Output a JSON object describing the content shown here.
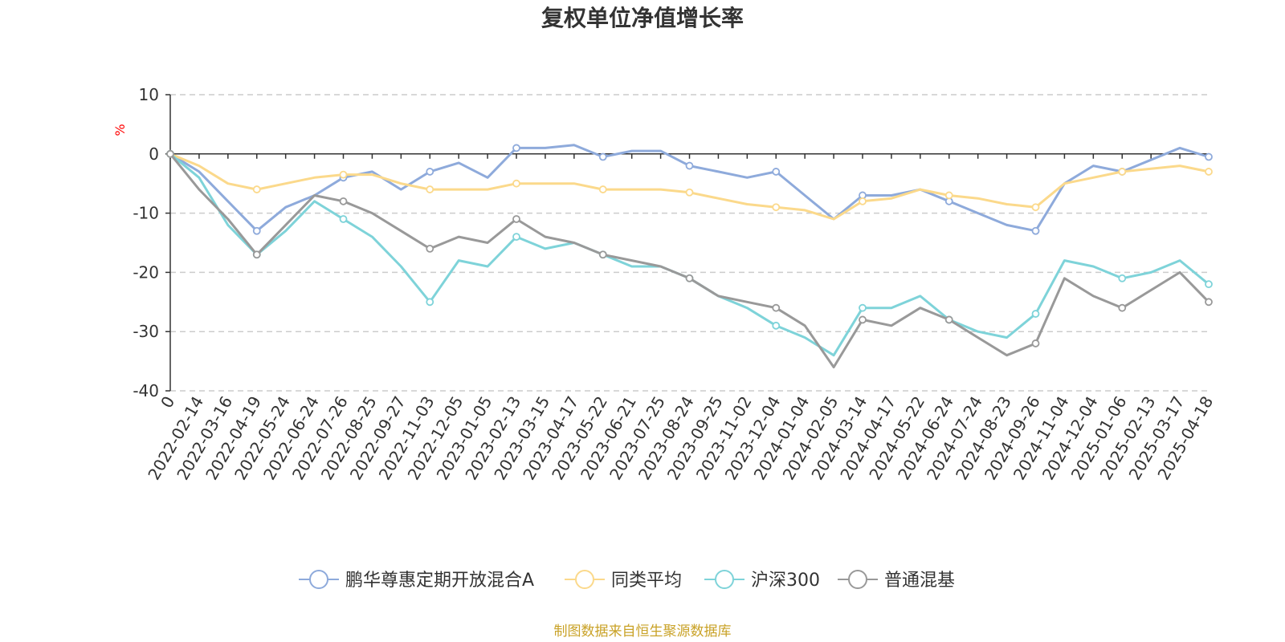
{
  "chart_data": {
    "type": "line",
    "title": "复权单位净值增长率",
    "ylabel": "%",
    "ylim": [
      -40,
      10
    ],
    "yticks": [
      10,
      0,
      -10,
      -20,
      -30,
      -40
    ],
    "grid": true,
    "legend_position": "bottom",
    "x_tick_labels": [
      "0",
      "2022-02-14",
      "2022-03-16",
      "2022-04-19",
      "2022-05-24",
      "2022-06-24",
      "2022-07-26",
      "2022-08-25",
      "2022-09-27",
      "2022-11-03",
      "2022-12-05",
      "2023-01-05",
      "2023-02-13",
      "2023-03-15",
      "2023-04-17",
      "2023-05-22",
      "2023-06-21",
      "2023-07-25",
      "2023-08-24",
      "2023-09-25",
      "2023-11-02",
      "2023-12-04",
      "2024-01-04",
      "2024-02-05",
      "2024-03-14",
      "2024-04-17",
      "2024-05-22",
      "2024-06-24",
      "2024-07-24",
      "2024-08-23",
      "2024-09-26",
      "2024-11-04",
      "2024-12-04",
      "2025-01-06",
      "2025-02-13",
      "2025-03-17",
      "2025-04-18"
    ],
    "series": [
      {
        "name": "鹏华尊惠定期开放混合A",
        "color": "#8eaadb",
        "values": [
          0,
          -3,
          -8,
          -13,
          -9,
          -7,
          -4,
          -3,
          -6,
          -3,
          -1.5,
          -4,
          1,
          1,
          1.5,
          -0.5,
          0.5,
          0.5,
          -2,
          -3,
          -4,
          -3,
          -7,
          -11,
          -7,
          -7,
          -6,
          -8,
          -10,
          -12,
          -13,
          -5,
          -2,
          -3,
          -1,
          1,
          -0.5
        ]
      },
      {
        "name": "同类平均",
        "color": "#fbd98b",
        "values": [
          0,
          -2,
          -5,
          -6,
          -5,
          -4,
          -3.5,
          -3.5,
          -5,
          -6,
          -6,
          -6,
          -5,
          -5,
          -5,
          -6,
          -6,
          -6,
          -6.5,
          -7.5,
          -8.5,
          -9,
          -9.5,
          -11,
          -8,
          -7.5,
          -6,
          -7,
          -7.5,
          -8.5,
          -9,
          -5,
          -4,
          -3,
          -2.5,
          -2,
          -3
        ]
      },
      {
        "name": "沪深300",
        "color": "#7ed3d9",
        "values": [
          0,
          -4,
          -12,
          -17,
          -13,
          -8,
          -11,
          -14,
          -19,
          -25,
          -18,
          -19,
          -14,
          -16,
          -15,
          -17,
          -19,
          -19,
          -21,
          -24,
          -26,
          -29,
          -31,
          -34,
          -26,
          -26,
          -24,
          -28,
          -30,
          -31,
          -27,
          -18,
          -19,
          -21,
          -20,
          -18,
          -22
        ]
      },
      {
        "name": "普通混基",
        "color": "#999999",
        "values": [
          0,
          -6,
          -11,
          -17,
          -12,
          -7,
          -8,
          -10,
          -13,
          -16,
          -14,
          -15,
          -11,
          -14,
          -15,
          -17,
          -18,
          -19,
          -21,
          -24,
          -25,
          -26,
          -29,
          -36,
          -28,
          -29,
          -26,
          -28,
          -31,
          -34,
          -32,
          -21,
          -24,
          -26,
          -23,
          -20,
          -25
        ]
      }
    ]
  },
  "source": "制图数据来自恒生聚源数据库"
}
